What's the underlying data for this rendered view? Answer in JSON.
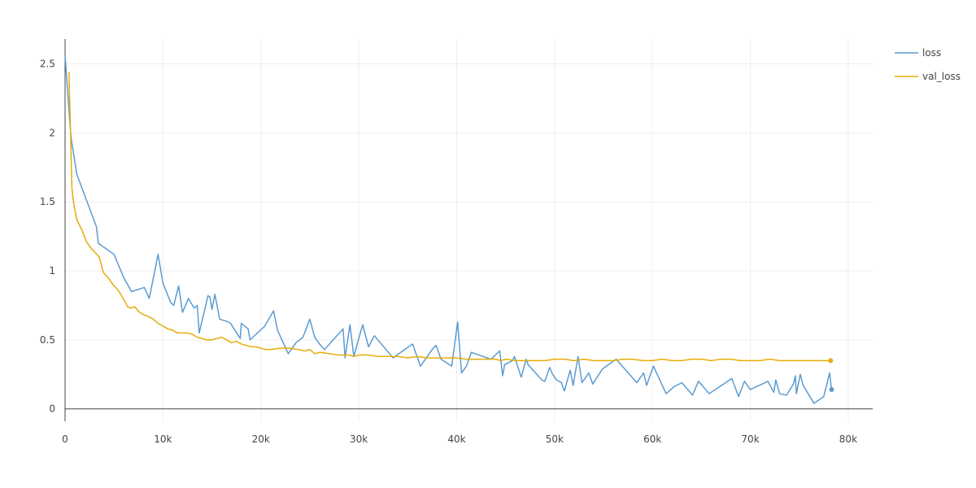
{
  "chart_data": {
    "type": "line",
    "x_ticks": [
      0,
      10000,
      20000,
      30000,
      40000,
      50000,
      60000,
      70000,
      80000
    ],
    "x_tick_labels": [
      "0",
      "10k",
      "20k",
      "30k",
      "40k",
      "50k",
      "60k",
      "70k",
      "80k"
    ],
    "y_ticks": [
      0,
      0.5,
      1,
      1.5,
      2,
      2.5
    ],
    "y_tick_labels": [
      "0",
      "0.5",
      "1",
      "1.5",
      "2",
      "2.5"
    ],
    "xlim": [
      0,
      82500
    ],
    "ylim": [
      -0.09,
      2.68
    ],
    "grid": true,
    "legend_position": "top-right",
    "series": [
      {
        "name": "loss",
        "color": "#5b9bd1",
        "x": [
          0,
          600,
          1200,
          3200,
          3400,
          5000,
          6000,
          6800,
          8100,
          8600,
          9500,
          10000,
          10800,
          11100,
          11600,
          12000,
          12600,
          13200,
          13500,
          13700,
          14600,
          14800,
          15000,
          15300,
          15800,
          16700,
          16900,
          17900,
          18000,
          18700,
          18900,
          20400,
          21300,
          21700,
          22800,
          23600,
          24300,
          25000,
          25500,
          26000,
          26500,
          28400,
          28600,
          29100,
          29500,
          30400,
          31000,
          31600,
          33500,
          34300,
          35500,
          36300,
          37600,
          37900,
          38400,
          39500,
          40100,
          40500,
          41000,
          41500,
          43500,
          44400,
          44700,
          44900,
          45700,
          45900,
          46600,
          47100,
          47300,
          48700,
          49000,
          49500,
          49800,
          50200,
          50700,
          51000,
          51600,
          51900,
          52400,
          52800,
          53500,
          53900,
          54900,
          56300,
          58400,
          59100,
          59400,
          60100,
          61400,
          62200,
          63000,
          64100,
          64700,
          65800,
          68100,
          68800,
          69400,
          70000,
          71800,
          72400,
          72600,
          73000,
          73700,
          74400,
          74600,
          74700,
          75100,
          75400,
          76500,
          77500,
          78100,
          78300
        ],
        "y": [
          2.56,
          1.97,
          1.7,
          1.32,
          1.2,
          1.12,
          0.95,
          0.85,
          0.88,
          0.8,
          1.12,
          0.91,
          0.77,
          0.75,
          0.89,
          0.7,
          0.8,
          0.73,
          0.75,
          0.55,
          0.82,
          0.81,
          0.72,
          0.83,
          0.65,
          0.63,
          0.62,
          0.51,
          0.62,
          0.58,
          0.5,
          0.6,
          0.71,
          0.57,
          0.4,
          0.48,
          0.52,
          0.65,
          0.52,
          0.47,
          0.43,
          0.58,
          0.37,
          0.61,
          0.38,
          0.61,
          0.45,
          0.53,
          0.37,
          0.41,
          0.47,
          0.31,
          0.44,
          0.46,
          0.36,
          0.31,
          0.63,
          0.26,
          0.31,
          0.41,
          0.36,
          0.42,
          0.24,
          0.32,
          0.35,
          0.38,
          0.23,
          0.36,
          0.32,
          0.21,
          0.2,
          0.3,
          0.25,
          0.21,
          0.19,
          0.13,
          0.28,
          0.17,
          0.38,
          0.19,
          0.26,
          0.18,
          0.29,
          0.36,
          0.19,
          0.26,
          0.17,
          0.31,
          0.11,
          0.16,
          0.19,
          0.1,
          0.2,
          0.11,
          0.22,
          0.09,
          0.2,
          0.14,
          0.2,
          0.12,
          0.21,
          0.11,
          0.1,
          0.18,
          0.24,
          0.11,
          0.25,
          0.17,
          0.04,
          0.09,
          0.26,
          0.14
        ]
      },
      {
        "name": "val_loss",
        "color": "#e5ad08",
        "x": [
          400,
          700,
          900,
          1200,
          1700,
          2200,
          2700,
          3100,
          3500,
          3900,
          4400,
          4900,
          5300,
          5700,
          6000,
          6400,
          6700,
          7100,
          7600,
          8100,
          8500,
          9000,
          9500,
          10000,
          10500,
          11000,
          11500,
          12000,
          12500,
          13000,
          13500,
          14000,
          14500,
          15000,
          15500,
          16000,
          16500,
          17000,
          17500,
          18000,
          18500,
          19000,
          19500,
          20000,
          20500,
          21000,
          22000,
          23000,
          23800,
          24500,
          25000,
          25500,
          26000,
          27000,
          28000,
          29000,
          29500,
          30000,
          31000,
          32000,
          33000,
          34000,
          35000,
          36000,
          37000,
          38000,
          39000,
          40000,
          41000,
          42000,
          43000,
          44000,
          44500,
          45000,
          46000,
          47000,
          48000,
          49000,
          50000,
          51000,
          52000,
          53000,
          54000,
          55000,
          56000,
          57000,
          58000,
          59000,
          60000,
          61000,
          62000,
          63000,
          64000,
          65000,
          66000,
          67000,
          68000,
          69000,
          70000,
          71000,
          72000,
          73000,
          74000,
          75000,
          76000,
          77000,
          78200
        ],
        "y": [
          2.44,
          1.6,
          1.48,
          1.37,
          1.3,
          1.21,
          1.16,
          1.13,
          1.1,
          0.99,
          0.95,
          0.9,
          0.87,
          0.83,
          0.79,
          0.74,
          0.73,
          0.74,
          0.7,
          0.68,
          0.67,
          0.65,
          0.62,
          0.6,
          0.58,
          0.57,
          0.55,
          0.55,
          0.55,
          0.54,
          0.52,
          0.51,
          0.5,
          0.5,
          0.51,
          0.52,
          0.5,
          0.48,
          0.49,
          0.47,
          0.46,
          0.45,
          0.45,
          0.44,
          0.43,
          0.43,
          0.44,
          0.44,
          0.43,
          0.42,
          0.43,
          0.4,
          0.41,
          0.4,
          0.39,
          0.39,
          0.38,
          0.39,
          0.39,
          0.38,
          0.38,
          0.38,
          0.37,
          0.38,
          0.37,
          0.37,
          0.37,
          0.37,
          0.36,
          0.36,
          0.36,
          0.36,
          0.35,
          0.36,
          0.35,
          0.35,
          0.35,
          0.35,
          0.36,
          0.36,
          0.35,
          0.36,
          0.35,
          0.35,
          0.35,
          0.36,
          0.36,
          0.35,
          0.35,
          0.36,
          0.35,
          0.35,
          0.36,
          0.36,
          0.35,
          0.36,
          0.36,
          0.35,
          0.35,
          0.35,
          0.36,
          0.35,
          0.35,
          0.35,
          0.35,
          0.35,
          0.35
        ]
      }
    ]
  }
}
